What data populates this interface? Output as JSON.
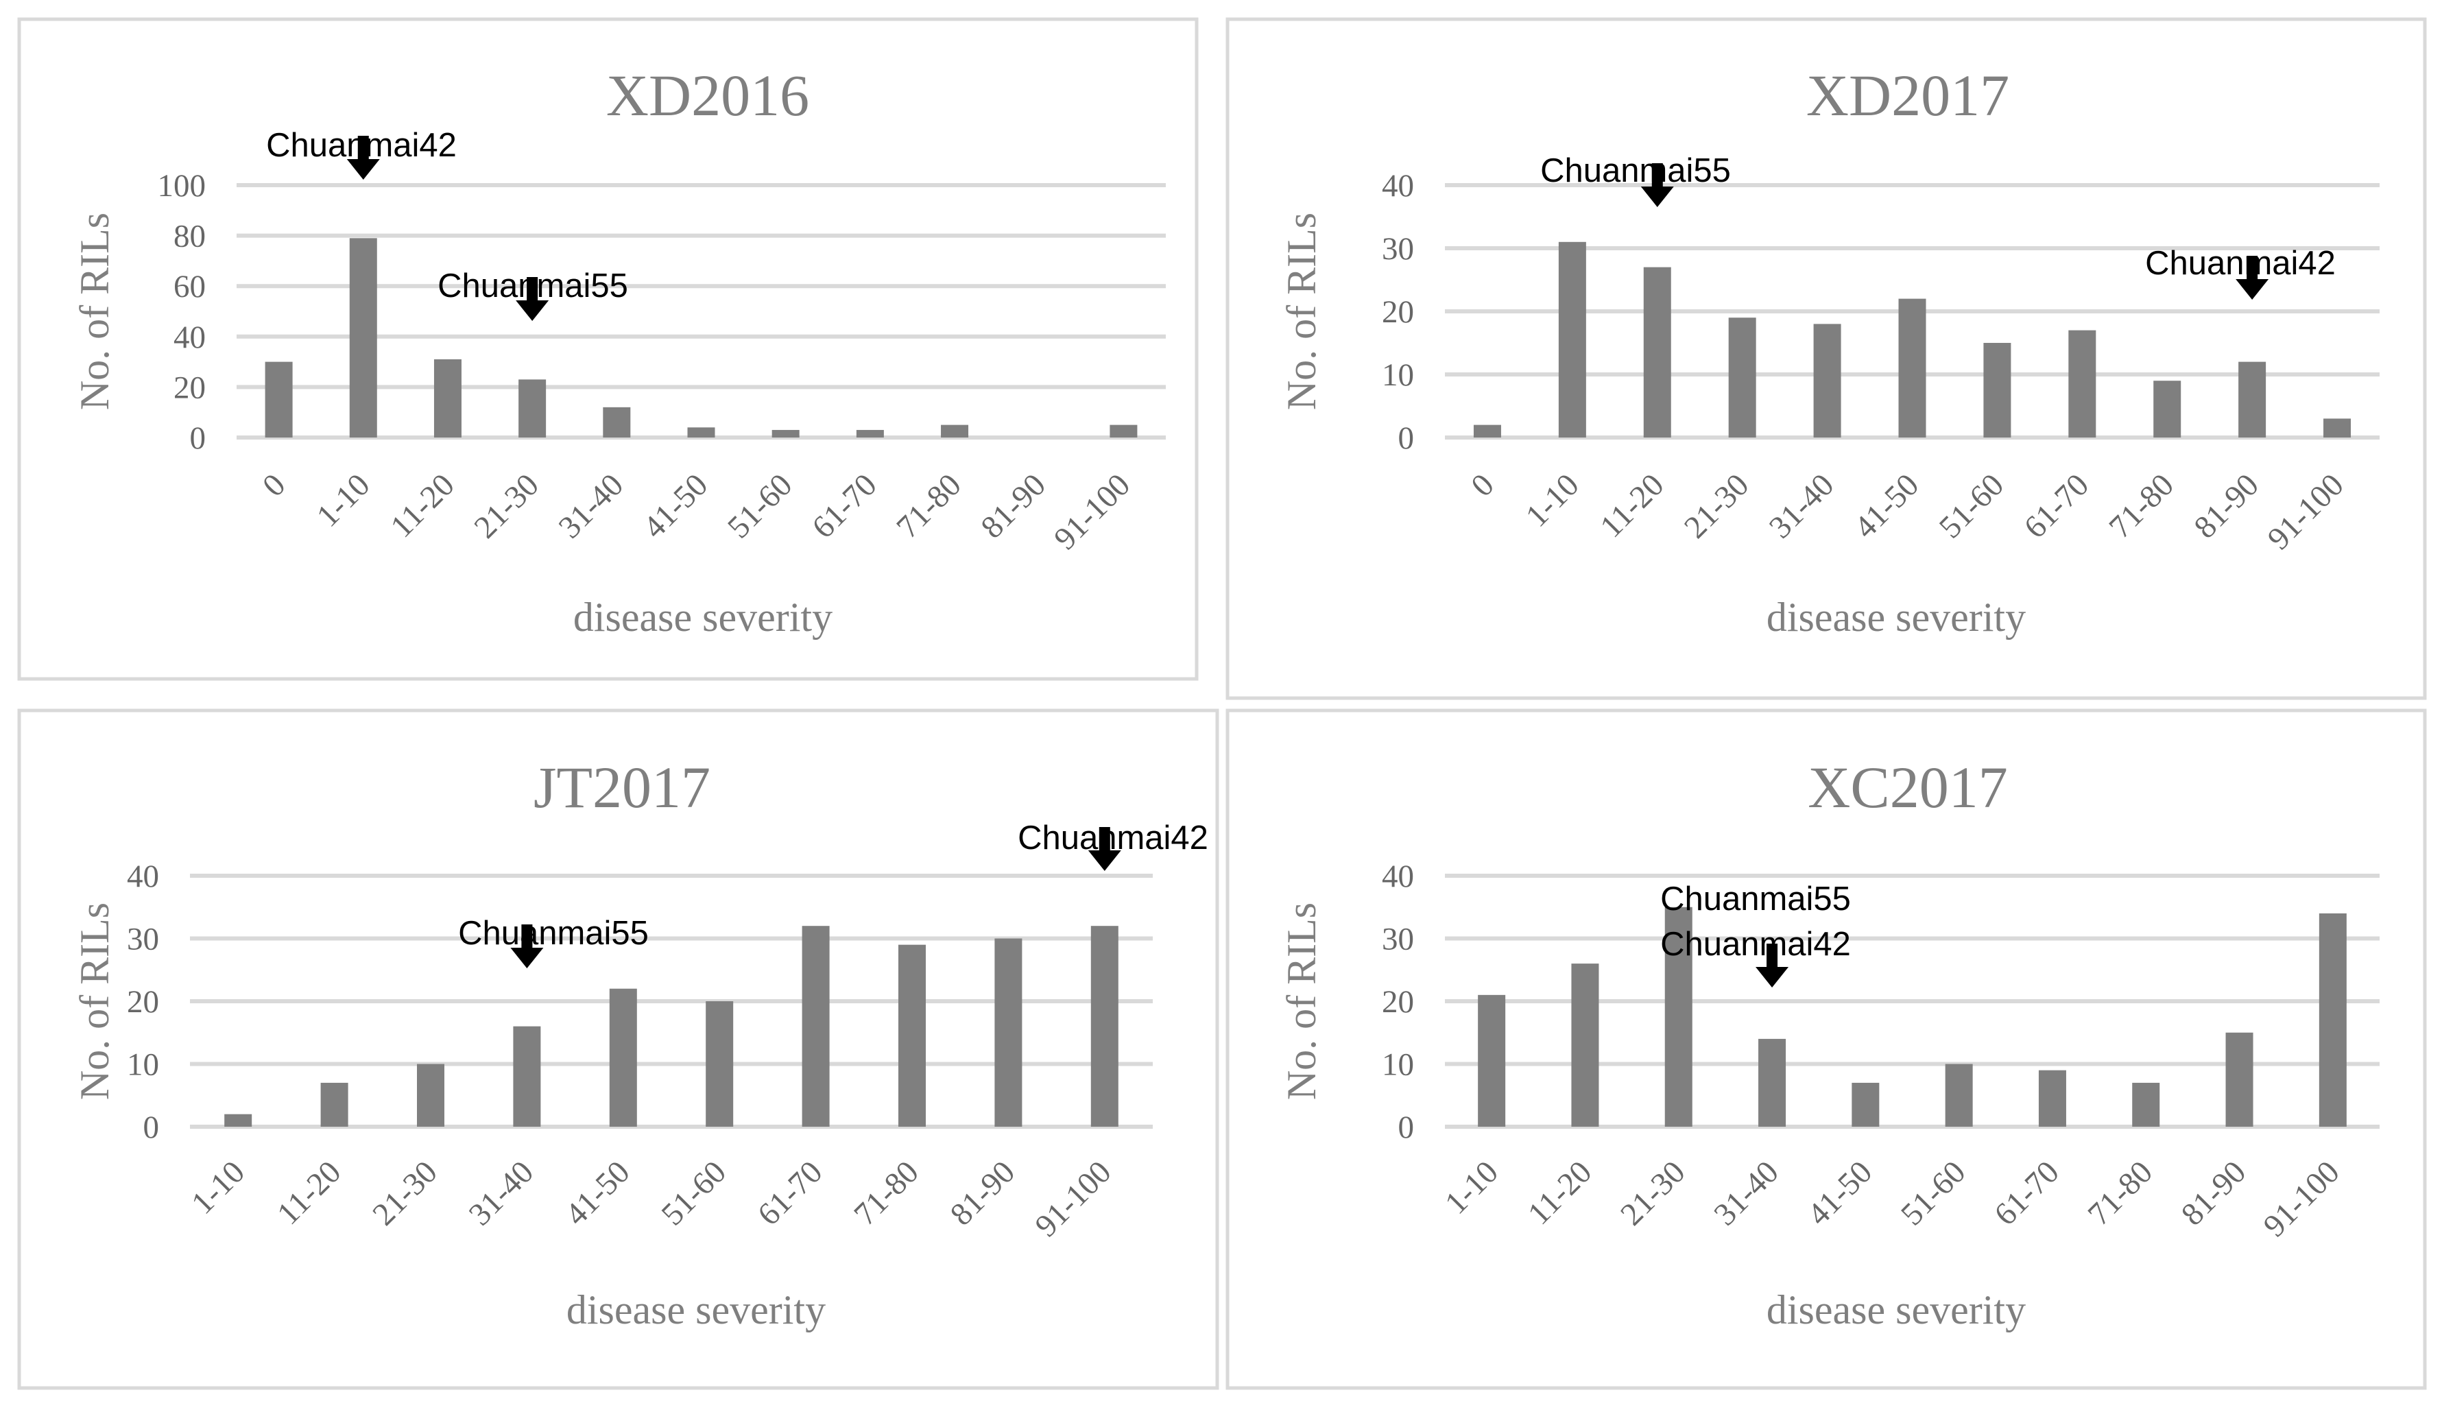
{
  "chart_data": [
    {
      "type": "bar",
      "title": "XD2016",
      "xlabel": "disease severity",
      "ylabel": "No. of RILs",
      "ylim": [
        0,
        100
      ],
      "yticks": [
        "0",
        "20",
        "40",
        "60",
        "80",
        "100"
      ],
      "grid": true,
      "categories": [
        "0",
        "1-10",
        "11-20",
        "21-30",
        "31-40",
        "41-50",
        "51-60",
        "61-70",
        "71-80",
        "81-90",
        "91-100"
      ],
      "values": [
        30,
        79,
        31,
        23,
        12,
        4,
        3,
        3,
        5,
        0,
        5
      ],
      "annotations": [
        {
          "text": "Chuanmai42",
          "category": "1-10"
        },
        {
          "text": "Chuanmai55",
          "category": "21-30"
        }
      ]
    },
    {
      "type": "bar",
      "title": "XD2017",
      "xlabel": "disease severity",
      "ylabel": "No. of RILs",
      "ylim": [
        0,
        40
      ],
      "yticks": [
        "0",
        "10",
        "20",
        "30",
        "40"
      ],
      "grid": true,
      "categories": [
        "0",
        "1-10",
        "11-20",
        "21-30",
        "31-40",
        "41-50",
        "51-60",
        "61-70",
        "71-80",
        "81-90",
        "91-100"
      ],
      "values": [
        2,
        31,
        27,
        19,
        18,
        22,
        15,
        17,
        9,
        12,
        3
      ],
      "annotations": [
        {
          "text": "Chuanmai55",
          "category": "11-20"
        },
        {
          "text": "Chuanmai42",
          "category": "81-90"
        }
      ]
    },
    {
      "type": "bar",
      "title": "JT2017",
      "xlabel": "disease severity",
      "ylabel": "No. of RILs",
      "ylim": [
        0,
        40
      ],
      "yticks": [
        "0",
        "10",
        "20",
        "30",
        "40"
      ],
      "grid": true,
      "categories": [
        "1-10",
        "11-20",
        "21-30",
        "31-40",
        "41-50",
        "51-60",
        "61-70",
        "71-80",
        "81-90",
        "91-100"
      ],
      "values": [
        2,
        7,
        10,
        16,
        22,
        20,
        32,
        29,
        30,
        32
      ],
      "annotations": [
        {
          "text": "Chuanmai55",
          "category": "31-40"
        },
        {
          "text": "Chuanmai42",
          "category": "91-100"
        }
      ]
    },
    {
      "type": "bar",
      "title": "XC2017",
      "xlabel": "disease severity",
      "ylabel": "No. of RILs",
      "ylim": [
        0,
        40
      ],
      "yticks": [
        "0",
        "10",
        "20",
        "30",
        "40"
      ],
      "grid": true,
      "categories": [
        "1-10",
        "11-20",
        "21-30",
        "31-40",
        "41-50",
        "51-60",
        "61-70",
        "71-80",
        "81-90",
        "91-100"
      ],
      "values": [
        21,
        26,
        35,
        14,
        7,
        10,
        9,
        7,
        15,
        34
      ],
      "annotations": [
        {
          "text": "Chuanmai55",
          "category": "31-40"
        },
        {
          "text": "Chuanmai42",
          "category": "31-40"
        }
      ]
    }
  ]
}
